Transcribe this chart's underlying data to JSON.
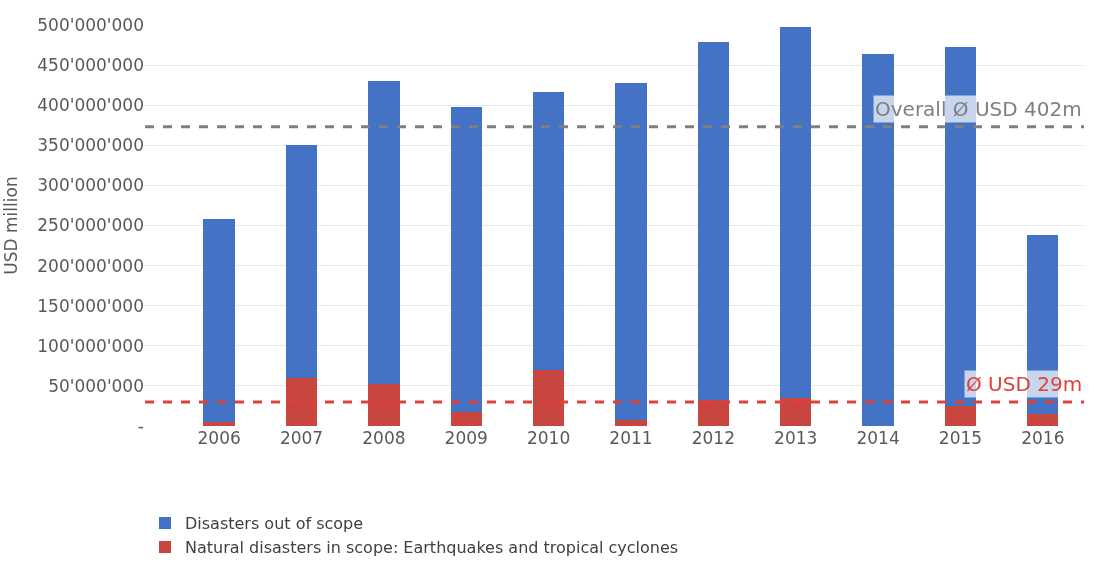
{
  "chart_data": {
    "type": "bar",
    "stacked": true,
    "ylabel": "USD million",
    "categories": [
      "2006",
      "2007",
      "2008",
      "2009",
      "2010",
      "2011",
      "2012",
      "2013",
      "2014",
      "2015",
      "2016"
    ],
    "series": [
      {
        "name": "Natural disasters in scope: Earthquakes and tropical cyclones",
        "color": "#c9453f",
        "values": [
          5000000,
          60000000,
          52000000,
          18000000,
          70000000,
          7000000,
          32000000,
          35000000,
          0,
          25000000,
          15000000
        ]
      },
      {
        "name": "Disasters out of scope",
        "color": "#4472c4",
        "values": [
          253000000,
          291000000,
          378000000,
          380000000,
          346000000,
          421000000,
          447000000,
          462000000,
          464000000,
          448000000,
          223000000
        ]
      }
    ],
    "ylim": [
      0,
      500000000
    ],
    "yticks": [
      {
        "value": 0,
        "label": "-"
      },
      {
        "value": 50000000,
        "label": "50'000'000"
      },
      {
        "value": 100000000,
        "label": "100'000'000"
      },
      {
        "value": 150000000,
        "label": "150'000'000"
      },
      {
        "value": 200000000,
        "label": "200'000'000"
      },
      {
        "value": 250000000,
        "label": "250'000'000"
      },
      {
        "value": 300000000,
        "label": "300'000'000"
      },
      {
        "value": 350000000,
        "label": "350'000'000"
      },
      {
        "value": 400000000,
        "label": "400'000'000"
      },
      {
        "value": 450000000,
        "label": "450'000'000"
      },
      {
        "value": 500000000,
        "label": "500'000'000"
      }
    ],
    "ref_lines": [
      {
        "axis": "y",
        "value": 373000000,
        "label": "Overall Ø USD 402m",
        "color": "#7f7f7f",
        "line_style": "dashed"
      },
      {
        "axis": "y",
        "value": 30000000,
        "label": "Ø USD 29m",
        "color": "#e0403a",
        "line_style": "dashed"
      }
    ],
    "grid": "y",
    "legend": "bottom left"
  }
}
